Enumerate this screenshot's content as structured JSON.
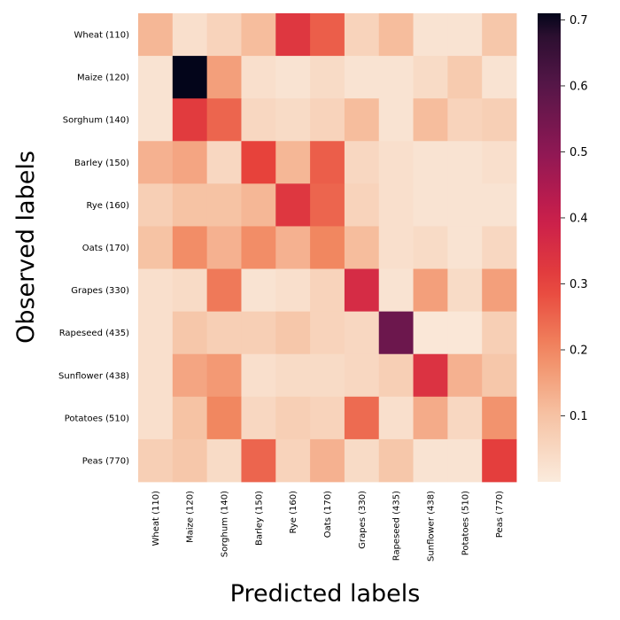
{
  "chart_data": {
    "type": "heatmap",
    "title": "",
    "xlabel": "Predicted labels",
    "ylabel": "Observed labels",
    "x_categories": [
      "Wheat (110)",
      "Maize (120)",
      "Sorghum (140)",
      "Barley (150)",
      "Rye (160)",
      "Oats (170)",
      "Grapes (330)",
      "Rapeseed (435)",
      "Sunflower (438)",
      "Potatoes (510)",
      "Peas (770)"
    ],
    "y_categories": [
      "Wheat (110)",
      "Maize (120)",
      "Sorghum (140)",
      "Barley (150)",
      "Rye (160)",
      "Oats (170)",
      "Grapes (330)",
      "Rapeseed (435)",
      "Sunflower (438)",
      "Potatoes (510)",
      "Peas (770)"
    ],
    "values": [
      [
        0.12,
        0.03,
        0.06,
        0.11,
        0.33,
        0.26,
        0.06,
        0.11,
        0.02,
        0.02,
        0.09
      ],
      [
        0.02,
        0.71,
        0.16,
        0.03,
        0.02,
        0.04,
        0.02,
        0.02,
        0.04,
        0.08,
        0.02
      ],
      [
        0.02,
        0.32,
        0.25,
        0.05,
        0.04,
        0.06,
        0.11,
        0.02,
        0.11,
        0.06,
        0.07
      ],
      [
        0.13,
        0.15,
        0.05,
        0.3,
        0.12,
        0.26,
        0.05,
        0.03,
        0.02,
        0.02,
        0.03
      ],
      [
        0.07,
        0.1,
        0.1,
        0.12,
        0.33,
        0.25,
        0.06,
        0.03,
        0.02,
        0.02,
        0.02
      ],
      [
        0.1,
        0.19,
        0.13,
        0.19,
        0.13,
        0.2,
        0.11,
        0.03,
        0.04,
        0.02,
        0.05
      ],
      [
        0.03,
        0.04,
        0.22,
        0.02,
        0.03,
        0.06,
        0.36,
        0.02,
        0.16,
        0.04,
        0.16
      ],
      [
        0.03,
        0.09,
        0.07,
        0.07,
        0.09,
        0.06,
        0.05,
        0.56,
        0.01,
        0.01,
        0.07
      ],
      [
        0.03,
        0.15,
        0.17,
        0.03,
        0.04,
        0.04,
        0.05,
        0.07,
        0.34,
        0.13,
        0.09
      ],
      [
        0.03,
        0.1,
        0.2,
        0.05,
        0.07,
        0.06,
        0.24,
        0.03,
        0.14,
        0.05,
        0.18
      ],
      [
        0.07,
        0.09,
        0.04,
        0.25,
        0.06,
        0.13,
        0.04,
        0.09,
        0.02,
        0.02,
        0.31
      ]
    ],
    "colorbar": {
      "min": 0.0,
      "max": 0.71,
      "ticks": [
        0.1,
        0.2,
        0.3,
        0.4,
        0.5,
        0.6,
        0.7
      ],
      "tick_labels": [
        "0.1",
        "0.2",
        "0.3",
        "0.4",
        "0.5",
        "0.6",
        "0.7"
      ],
      "colormap": "rocket_r"
    },
    "grid": false
  }
}
